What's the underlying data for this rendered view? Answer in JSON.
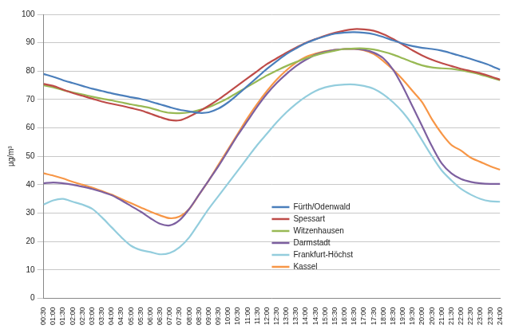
{
  "chart_data": {
    "type": "line",
    "y_label": "µg/m³",
    "categories": [
      "00:30",
      "01:00",
      "01:30",
      "02:00",
      "02:30",
      "03:00",
      "03:30",
      "04:00",
      "04:30",
      "05:00",
      "05:30",
      "06:00",
      "06:30",
      "07:00",
      "07:30",
      "08:00",
      "08:30",
      "09:00",
      "09:30",
      "10:00",
      "10:30",
      "11:00",
      "11:30",
      "12:00",
      "12:30",
      "13:00",
      "13:30",
      "14:00",
      "14:30",
      "15:00",
      "15:30",
      "16:00",
      "16:30",
      "17:00",
      "17:30",
      "18:00",
      "18:30",
      "19:00",
      "19:30",
      "20:00",
      "20:30",
      "21:00",
      "21:30",
      "22:00",
      "22:30",
      "23:00",
      "23:30",
      "24:00"
    ],
    "series": [
      {
        "name": "Fürth/Odenwald",
        "color": "#4a7ebb",
        "values": [
          79,
          78,
          76.8,
          75.8,
          74.8,
          73.8,
          73,
          72.2,
          71.5,
          70.8,
          70.2,
          69.3,
          68.3,
          67.3,
          66.4,
          65.8,
          65.3,
          65.5,
          66.8,
          69,
          71.8,
          74.8,
          77.8,
          80.8,
          83.5,
          86,
          88,
          89.8,
          91.2,
          92.3,
          93.2,
          93.6,
          93.7,
          93.5,
          93,
          92,
          90.8,
          89.7,
          88.8,
          88.2,
          87.8,
          87.2,
          86.3,
          85.3,
          84.3,
          83.2,
          82,
          80.5
        ]
      },
      {
        "name": "Spessart",
        "color": "#be4b48",
        "values": [
          75.5,
          74.8,
          73.5,
          72.3,
          71.3,
          70.3,
          69.3,
          68.5,
          67.8,
          67,
          66.2,
          65,
          63.8,
          62.8,
          62.7,
          64,
          65.8,
          67.8,
          70,
          72.5,
          75,
          77.5,
          80,
          82.5,
          84.5,
          86.5,
          88.3,
          90,
          91.3,
          92.5,
          93.5,
          94.3,
          94.8,
          94.7,
          94.2,
          93,
          91.3,
          89.3,
          87.3,
          85.5,
          84,
          82.8,
          81.8,
          80.8,
          80,
          79.2,
          78.2,
          77
        ]
      },
      {
        "name": "Witzenhausen",
        "color": "#98b954",
        "values": [
          75,
          74.3,
          73.3,
          72.5,
          71.8,
          71,
          70.3,
          69.7,
          69,
          68.3,
          67.7,
          67,
          66,
          65.3,
          65.2,
          65.5,
          66.3,
          67.3,
          68.8,
          70.5,
          72.5,
          74.5,
          76.5,
          78.5,
          80.2,
          81.8,
          83.2,
          84.5,
          85.6,
          86.5,
          87.2,
          87.8,
          88,
          88,
          87.6,
          86.8,
          85.8,
          84.5,
          83.2,
          82,
          81.3,
          81,
          80.8,
          80.3,
          79.6,
          78.8,
          77.8,
          76.8
        ]
      },
      {
        "name": "Darmstadt",
        "color": "#7d60a0",
        "values": [
          40.5,
          40.8,
          40.5,
          40,
          39.3,
          38.5,
          37.5,
          36.3,
          34.5,
          32.5,
          30.5,
          28.2,
          26.2,
          25.7,
          27.5,
          31.5,
          36.5,
          41.5,
          46.5,
          52,
          57.5,
          62.5,
          67.5,
          72,
          75.8,
          79,
          81.8,
          84,
          85.8,
          86.8,
          87.5,
          87.8,
          87.8,
          87.5,
          86.5,
          84.5,
          80.5,
          74.5,
          67.5,
          60.5,
          53.5,
          47.5,
          44,
          42,
          41,
          40.5,
          40.3,
          40.3
        ]
      },
      {
        "name": "Frankfurt-Höchst",
        "color": "#93cddd",
        "values": [
          33,
          34.5,
          35,
          34,
          33,
          31.5,
          28.5,
          25,
          21.5,
          18.5,
          17,
          16.3,
          15.5,
          16,
          18,
          21.5,
          26.5,
          31.5,
          36,
          40.5,
          45,
          49.5,
          54,
          58,
          62,
          65.5,
          68.5,
          71,
          73,
          74.3,
          75,
          75.3,
          75.3,
          74.8,
          73.8,
          71.8,
          69,
          65.5,
          61,
          55.5,
          50,
          45,
          41.5,
          38.5,
          36.5,
          35,
          34.2,
          34
        ]
      },
      {
        "name": "Kassel",
        "color": "#f79646",
        "values": [
          44,
          43.2,
          42.2,
          41,
          40,
          39,
          37.8,
          36.5,
          35,
          33.5,
          32,
          30.5,
          29.2,
          28.2,
          28.8,
          31.5,
          36.5,
          41.5,
          47,
          52.5,
          58,
          63.5,
          68.5,
          73,
          77,
          80.3,
          83,
          85,
          86.2,
          87,
          87.5,
          87.8,
          87.8,
          87.3,
          86,
          83.5,
          80.5,
          77,
          73,
          69,
          63,
          58,
          54,
          52,
          49.5,
          48,
          46.5,
          45.3
        ]
      }
    ],
    "ylim": [
      0,
      100
    ],
    "yticks": [
      0,
      10,
      20,
      30,
      40,
      50,
      60,
      70,
      80,
      90,
      100
    ],
    "grid": true,
    "legend": "bottom"
  }
}
